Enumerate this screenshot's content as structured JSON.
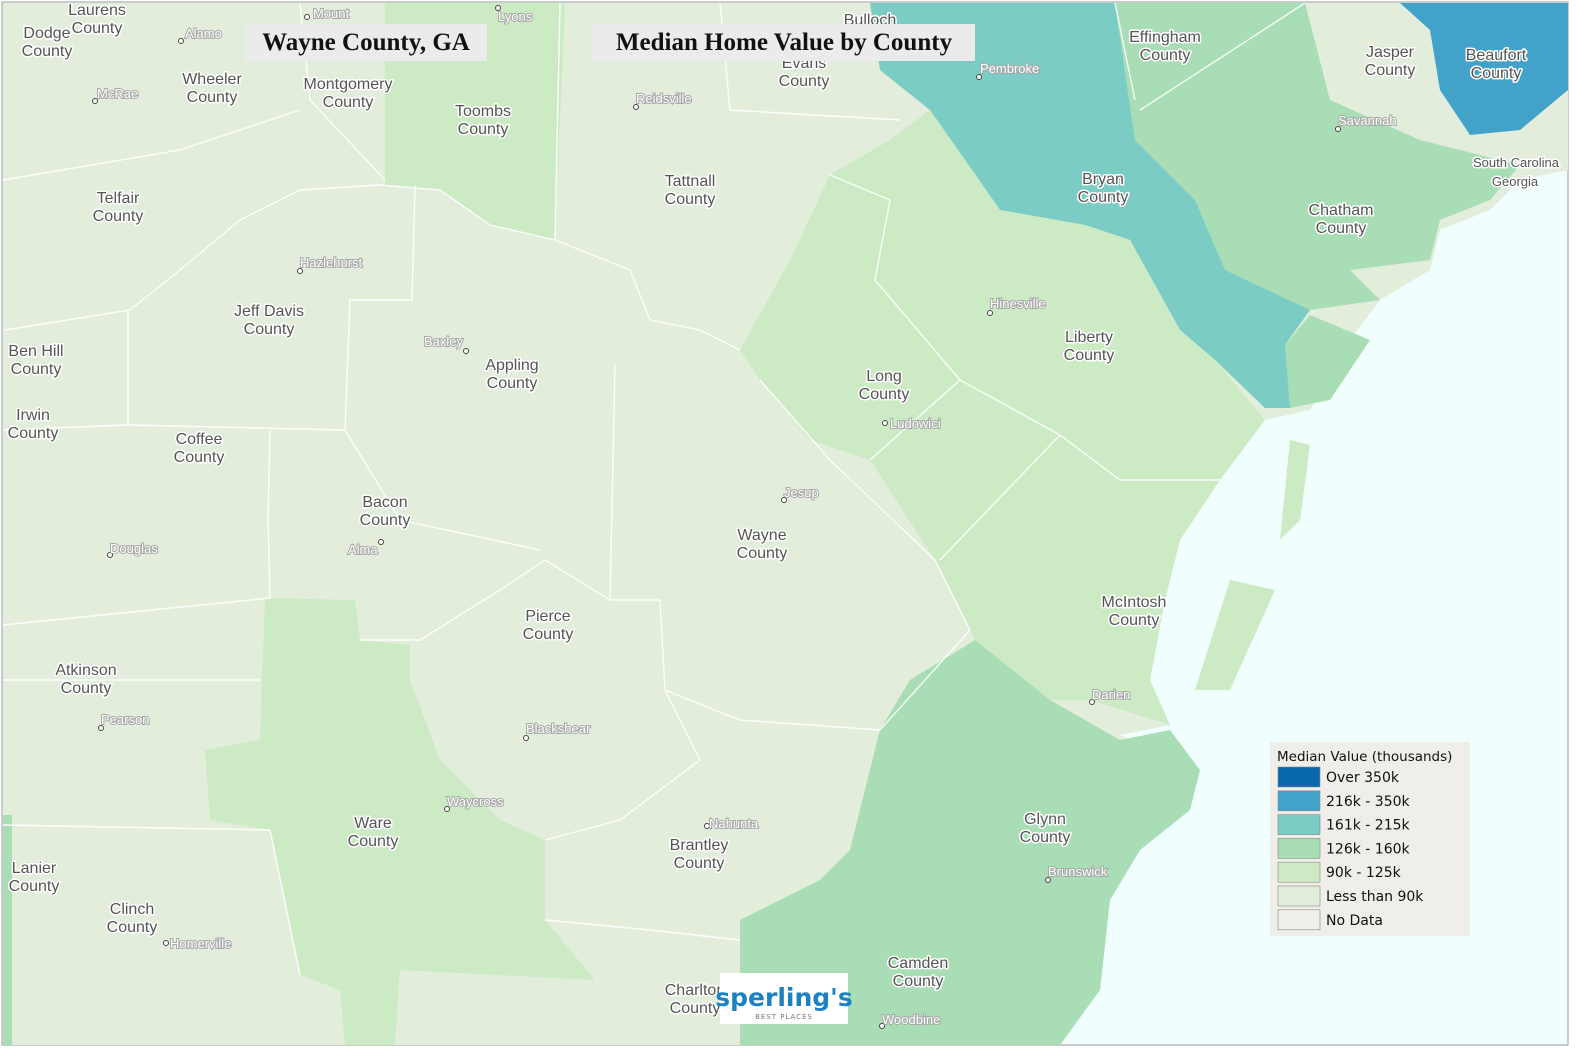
{
  "header": {
    "title": "Wayne County, GA",
    "subtitle": "Median Home Value by County"
  },
  "counties": [
    "Laurens County",
    "Dodge County",
    "Wheeler County",
    "Montgomery County",
    "Toombs County",
    "Evans County",
    "Effingham County",
    "Jasper County",
    "Beaufort County",
    "Telfair County",
    "Tattnall County",
    "Bryan County",
    "Chatham County",
    "Jeff Davis County",
    "Ben Hill County",
    "Appling County",
    "Long County",
    "Liberty County",
    "Irwin County",
    "Coffee County",
    "Bacon County",
    "Wayne County",
    "McIntosh County",
    "Pierce County",
    "Atkinson County",
    "Glynn County",
    "Ware County",
    "Brantley County",
    "Lanier County",
    "Clinch County",
    "Camden County",
    "Charlton County",
    "Bulloch"
  ],
  "cities": [
    "Mount",
    "Lyons",
    "Alamo",
    "McRae",
    "Reidsville",
    "Pembroke",
    "Savannah",
    "Hazlehurst",
    "Hinesville",
    "Baxley",
    "Ludowici",
    "Jesup",
    "Douglas",
    "Alma",
    "Darien",
    "Pearson",
    "Blackshear",
    "Waycross",
    "Nahunta",
    "Brunswick",
    "Homerville",
    "Woodbine"
  ],
  "states": [
    "South Carolina",
    "Georgia"
  ],
  "legend": {
    "title": "Median Value (thousands)",
    "items": [
      {
        "label": "Over 350k",
        "color": "#0868ac"
      },
      {
        "label": "216k - 350k",
        "color": "#43a2ca"
      },
      {
        "label": "161k - 215k",
        "color": "#7bccc4"
      },
      {
        "label": "126k - 160k",
        "color": "#a8ddb5"
      },
      {
        "label": "90k - 125k",
        "color": "#ccebc5"
      },
      {
        "label": "Less than 90k",
        "color": "#e3eddb"
      },
      {
        "label": "No Data",
        "color": "#f0eee8"
      }
    ]
  },
  "logo": {
    "name": "sperling's",
    "tagline": "BEST PLACES"
  }
}
